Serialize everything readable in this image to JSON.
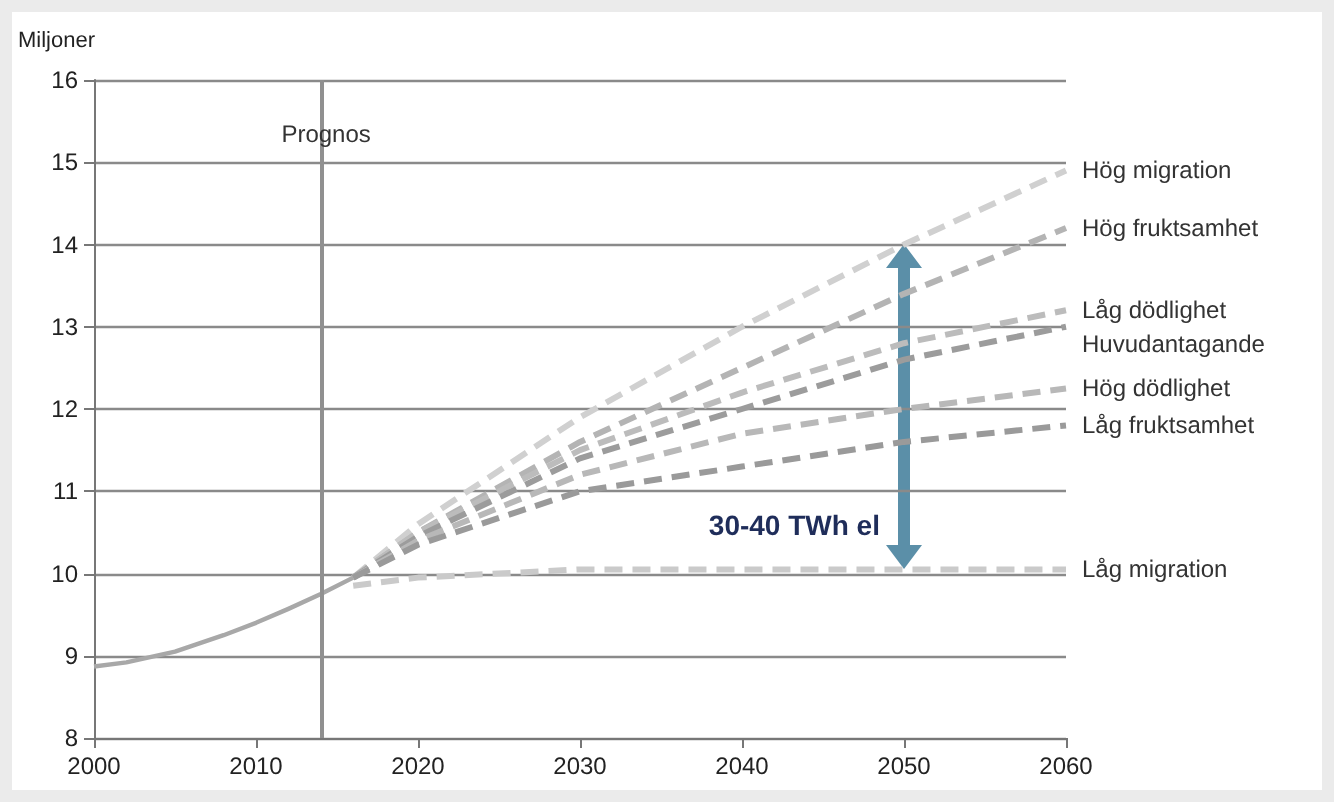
{
  "chart_data": {
    "type": "line",
    "ylabel": "Miljoner",
    "xlim": [
      2000,
      2060
    ],
    "xticks": [
      2000,
      2010,
      2020,
      2030,
      2040,
      2050,
      2060
    ],
    "ylim": [
      8,
      16
    ],
    "yticks": [
      8,
      9,
      10,
      11,
      12,
      13,
      14,
      15,
      16
    ],
    "grid": "y",
    "legend": false,
    "marker": "none",
    "series": [
      {
        "color": "#a8a8a8",
        "line_style": "solid",
        "x": [
          2000,
          2002,
          2005,
          2008,
          2010,
          2012,
          2014,
          2016
        ],
        "values": [
          8.87,
          8.92,
          9.05,
          9.25,
          9.4,
          9.57,
          9.75,
          9.95
        ]
      },
      {
        "name": "Hög migration",
        "color": "#d0d0d0",
        "line_style": "dashed",
        "x": [
          2016,
          2020,
          2030,
          2040,
          2050,
          2060
        ],
        "values": [
          9.95,
          10.6,
          11.9,
          13.0,
          14.0,
          14.9
        ]
      },
      {
        "name": "Hög fruktsamhet",
        "color": "#b4b4b4",
        "line_style": "dashed",
        "x": [
          2016,
          2020,
          2030,
          2040,
          2050,
          2060
        ],
        "values": [
          9.95,
          10.5,
          11.6,
          12.5,
          13.4,
          14.2
        ]
      },
      {
        "name": "Låg dödlighet",
        "color": "#bcbcbc",
        "line_style": "dashed",
        "x": [
          2016,
          2020,
          2030,
          2040,
          2050,
          2060
        ],
        "values": [
          9.95,
          10.5,
          11.5,
          12.2,
          12.8,
          13.2
        ]
      },
      {
        "name": "Huvudantagande",
        "color": "#9c9c9c",
        "line_style": "dashed",
        "x": [
          2016,
          2020,
          2030,
          2040,
          2050,
          2060
        ],
        "values": [
          9.95,
          10.45,
          11.4,
          12.0,
          12.6,
          13.0
        ]
      },
      {
        "name": "Hög dödlighet",
        "color": "#b8b8b8",
        "line_style": "dashed",
        "x": [
          2016,
          2020,
          2030,
          2040,
          2050,
          2060
        ],
        "values": [
          9.95,
          10.4,
          11.2,
          11.7,
          12.0,
          12.25
        ]
      },
      {
        "name": "Låg fruktsamhet",
        "color": "#9a9a9a",
        "line_style": "dashed",
        "x": [
          2016,
          2020,
          2030,
          2040,
          2050,
          2060
        ],
        "values": [
          9.95,
          10.35,
          11.0,
          11.3,
          11.6,
          11.8
        ]
      },
      {
        "name": "Låg migration",
        "color": "#cacaca",
        "line_style": "dashed",
        "x": [
          2016,
          2020,
          2030,
          2040,
          2050,
          2060
        ],
        "values": [
          9.85,
          9.95,
          10.05,
          10.05,
          10.05,
          10.05
        ]
      }
    ],
    "ref_lines": [
      {
        "axis": "x",
        "value": 2014,
        "label": "Prognos",
        "color": "#909090"
      }
    ],
    "annotations": [
      "30-40 TWh el"
    ]
  }
}
